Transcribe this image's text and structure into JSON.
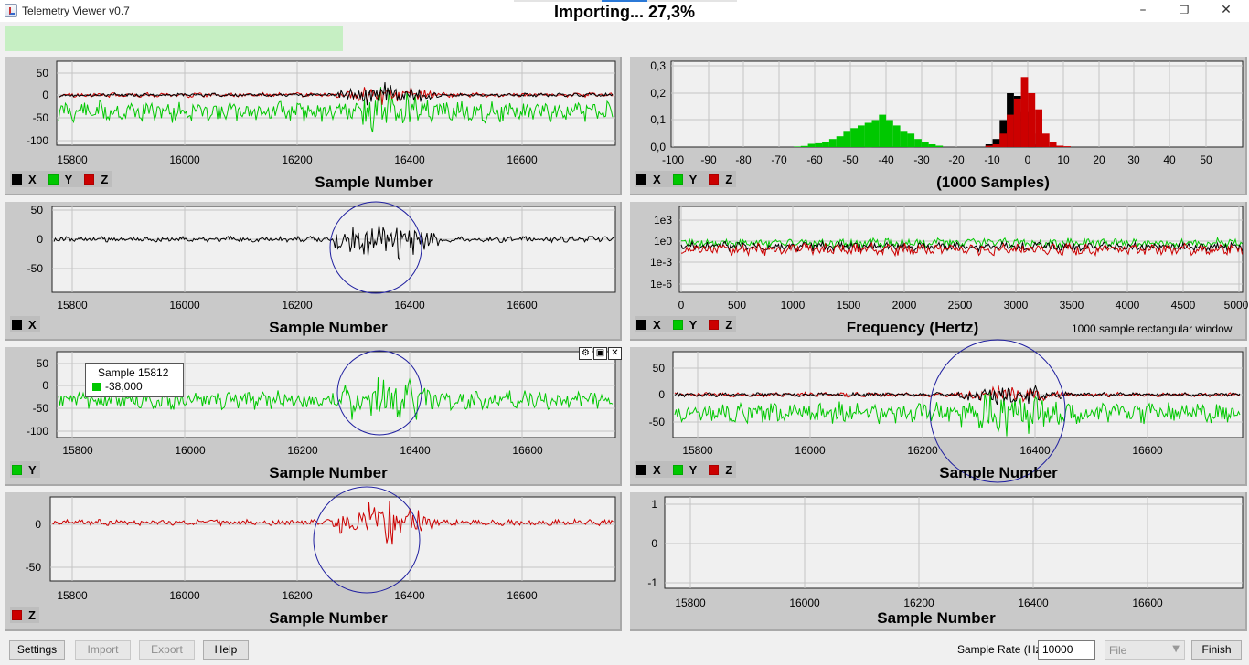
{
  "window": {
    "title": "Telemetry Viewer v0.7"
  },
  "progress": {
    "label": "Importing... 27,3%",
    "fraction": 0.273
  },
  "colors": {
    "x": "#000000",
    "y": "#00c800",
    "z": "#cc0000",
    "highlight_circle": "#2020a0",
    "progress_fill": "#c6efc3"
  },
  "charts": {
    "xyz_top": {
      "y_ticks": [
        "50",
        "0",
        "-50",
        "-100"
      ],
      "x_ticks": [
        "15800",
        "16000",
        "16200",
        "16400",
        "16600"
      ],
      "axis_title": "Sample Number",
      "legend": [
        "X",
        "Y",
        "Z"
      ]
    },
    "x_only": {
      "y_ticks": [
        "50",
        "0",
        "-50"
      ],
      "x_ticks": [
        "15800",
        "16000",
        "16200",
        "16400",
        "16600"
      ],
      "axis_title": "Sample Number",
      "legend": [
        "X"
      ]
    },
    "y_only": {
      "y_ticks": [
        "50",
        "0",
        "-50",
        "-100"
      ],
      "x_ticks": [
        "15800",
        "16000",
        "16200",
        "16400",
        "16600"
      ],
      "axis_title": "Sample Number",
      "legend": [
        "Y"
      ],
      "tooltip": {
        "title": "Sample 15812",
        "value": "-38,000"
      }
    },
    "z_only": {
      "y_ticks": [
        "0",
        "-50"
      ],
      "x_ticks": [
        "15800",
        "16000",
        "16200",
        "16400",
        "16600"
      ],
      "axis_title": "Sample Number",
      "legend": [
        "Z"
      ]
    },
    "histogram": {
      "y_ticks": [
        "0,3",
        "0,2",
        "0,1",
        "0,0"
      ],
      "x_ticks": [
        "-100",
        "-90",
        "-80",
        "-70",
        "-60",
        "-50",
        "-40",
        "-30",
        "-20",
        "-10",
        "0",
        "10",
        "20",
        "30",
        "40",
        "50"
      ],
      "axis_title": "(1000 Samples)",
      "legend": [
        "X",
        "Y",
        "Z"
      ]
    },
    "fft": {
      "y_ticks": [
        "1e3",
        "1e0",
        "1e-3",
        "1e-6"
      ],
      "x_ticks": [
        "0",
        "500",
        "1000",
        "1500",
        "2000",
        "2500",
        "3000",
        "3500",
        "4000",
        "4500",
        "5000"
      ],
      "axis_title": "Frequency (Hertz)",
      "note": "1000 sample rectangular window",
      "legend": [
        "X",
        "Y",
        "Z"
      ]
    },
    "xyz_combined": {
      "y_ticks": [
        "50",
        "0",
        "-50"
      ],
      "x_ticks": [
        "15800",
        "16000",
        "16200",
        "16400",
        "16600"
      ],
      "axis_title": "Sample Number",
      "legend": [
        "X",
        "Y",
        "Z"
      ]
    },
    "empty": {
      "y_ticks": [
        "1",
        "0",
        "-1"
      ],
      "x_ticks": [
        "15800",
        "16000",
        "16200",
        "16400",
        "16600"
      ],
      "axis_title": "Sample Number"
    }
  },
  "footer": {
    "settings": "Settings",
    "import": "Import",
    "export": "Export",
    "help": "Help",
    "sample_rate_label": "Sample Rate (Hz)",
    "sample_rate_value": "10000",
    "source_select": "File",
    "finish": "Finish"
  }
}
